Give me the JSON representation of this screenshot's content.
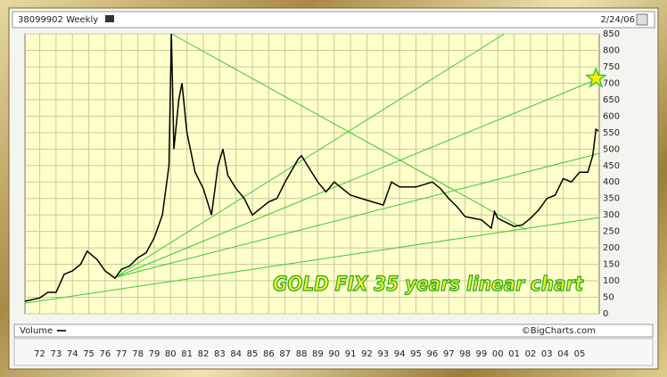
{
  "chart_data": {
    "type": "line",
    "header_left": "38099902 Weekly",
    "header_right": "2/24/06",
    "title": "GOLD FIX 35 years linear chart",
    "volume_label": "Volume",
    "credit": "©BigCharts.com",
    "color": "#000000",
    "grid": true,
    "x": [
      1971.1,
      1972,
      1972.5,
      1973,
      1973.5,
      1974,
      1974.5,
      1974.9,
      1975.5,
      1976,
      1976.6,
      1977,
      1977.5,
      1978,
      1978.5,
      1979,
      1979.5,
      1979.9,
      1980.05,
      1980.2,
      1980.5,
      1980.7,
      1981,
      1981.5,
      1982,
      1982.5,
      1982.9,
      1983.2,
      1983.5,
      1984,
      1984.5,
      1985,
      1985.5,
      1986,
      1986.5,
      1987,
      1987.8,
      1988,
      1988.5,
      1989,
      1989.5,
      1990,
      1990.5,
      1991,
      1992,
      1993,
      1993.5,
      1994,
      1995,
      1996,
      1996.5,
      1997,
      1997.5,
      1998,
      1998.5,
      1999,
      1999.6,
      1999.8,
      2000,
      2001,
      2001.5,
      2002,
      2002.5,
      2003,
      2003.5,
      2004,
      2004.5,
      2005,
      2005.5,
      2005.8,
      2006,
      2006.15
    ],
    "values": [
      38,
      48,
      65,
      65,
      120,
      130,
      150,
      190,
      165,
      130,
      108,
      135,
      145,
      170,
      185,
      230,
      300,
      450,
      850,
      500,
      650,
      700,
      550,
      430,
      380,
      300,
      450,
      500,
      420,
      380,
      350,
      300,
      320,
      340,
      350,
      400,
      470,
      480,
      440,
      400,
      370,
      400,
      380,
      360,
      345,
      330,
      400,
      385,
      385,
      400,
      380,
      350,
      325,
      295,
      290,
      285,
      260,
      310,
      290,
      265,
      270,
      290,
      315,
      350,
      360,
      410,
      400,
      430,
      430,
      480,
      560,
      555
    ],
    "trend_lines": [
      {
        "x": [
          1971.1,
          2006.2
        ],
        "values": [
          32,
          292
        ]
      },
      {
        "x": [
          1976.6,
          2006.2
        ],
        "values": [
          110,
          487
        ]
      },
      {
        "x": [
          1976.6,
          2006.2
        ],
        "values": [
          110,
          715
        ]
      },
      {
        "x": [
          1976.6,
          2000.4
        ],
        "values": [
          110,
          850
        ]
      },
      {
        "x": [
          1980.07,
          2001.7
        ],
        "values": [
          850,
          255
        ]
      }
    ],
    "trend_color": "#33cc33",
    "star": {
      "x": 2006,
      "value": 715,
      "color": "#ffee00"
    },
    "xlim": [
      1971.1,
      2006.2
    ],
    "ylim": [
      0,
      850
    ],
    "yticks": [
      0,
      50,
      100,
      150,
      200,
      250,
      300,
      350,
      400,
      450,
      500,
      550,
      600,
      650,
      700,
      750,
      800,
      850
    ],
    "xticks": [
      {
        "value": 1972,
        "label": "72"
      },
      {
        "value": 1973,
        "label": "73"
      },
      {
        "value": 1974,
        "label": "74"
      },
      {
        "value": 1975,
        "label": "75"
      },
      {
        "value": 1976,
        "label": "76"
      },
      {
        "value": 1977,
        "label": "77"
      },
      {
        "value": 1978,
        "label": "78"
      },
      {
        "value": 1979,
        "label": "79"
      },
      {
        "value": 1980,
        "label": "80"
      },
      {
        "value": 1981,
        "label": "81"
      },
      {
        "value": 1982,
        "label": "82"
      },
      {
        "value": 1983,
        "label": "83"
      },
      {
        "value": 1984,
        "label": "84"
      },
      {
        "value": 1985,
        "label": "85"
      },
      {
        "value": 1986,
        "label": "86"
      },
      {
        "value": 1987,
        "label": "87"
      },
      {
        "value": 1988,
        "label": "88"
      },
      {
        "value": 1989,
        "label": "89"
      },
      {
        "value": 1990,
        "label": "90"
      },
      {
        "value": 1991,
        "label": "91"
      },
      {
        "value": 1992,
        "label": "92"
      },
      {
        "value": 1993,
        "label": "93"
      },
      {
        "value": 1994,
        "label": "94"
      },
      {
        "value": 1995,
        "label": "95"
      },
      {
        "value": 1996,
        "label": "96"
      },
      {
        "value": 1997,
        "label": "97"
      },
      {
        "value": 1998,
        "label": "98"
      },
      {
        "value": 1999,
        "label": "99"
      },
      {
        "value": 2000,
        "label": "00"
      },
      {
        "value": 2001,
        "label": "01"
      },
      {
        "value": 2002,
        "label": "02"
      },
      {
        "value": 2003,
        "label": "03"
      },
      {
        "value": 2004,
        "label": "04"
      },
      {
        "value": 2005,
        "label": "05"
      }
    ]
  }
}
